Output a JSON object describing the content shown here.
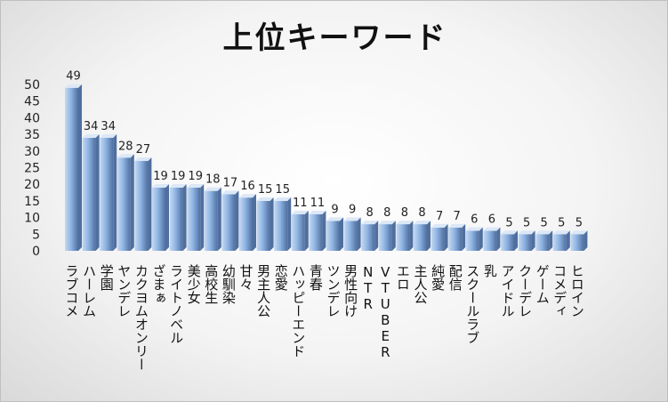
{
  "chart_data": {
    "type": "bar",
    "title": "上位キーワード",
    "xlabel": "",
    "ylabel": "",
    "ylim": [
      0,
      50
    ],
    "yticks": [
      0,
      5,
      10,
      15,
      20,
      25,
      30,
      35,
      40,
      45,
      50
    ],
    "grid": false,
    "legend": "none",
    "categories": [
      "ラブコメ",
      "ハーレム",
      "学園",
      "ヤンデレ",
      "カクヨムオンリー",
      "ざまぁ",
      "ライトノベル",
      "美少女",
      "高校生",
      "幼馴染",
      "甘々",
      "男主人公",
      "恋愛",
      "ハッピーエンド",
      "青春",
      "ツンデレ",
      "男性向け",
      "NTR",
      "VTUBER",
      "エロ",
      "主人公",
      "純愛",
      "配信",
      "スクールラブ",
      "乳",
      "アイドル",
      "クーデレ",
      "ゲーム",
      "コメディ",
      "ヒロイン"
    ],
    "values": [
      49,
      34,
      34,
      28,
      27,
      19,
      19,
      19,
      18,
      17,
      16,
      15,
      15,
      11,
      11,
      9,
      9,
      8,
      8,
      8,
      8,
      7,
      7,
      6,
      6,
      5,
      5,
      5,
      5,
      5
    ],
    "data_labels": [
      "49",
      "34",
      "34",
      "28",
      "27",
      "19",
      "19",
      "19",
      "18",
      "17",
      "16",
      "15",
      "15",
      "11",
      "11",
      "9",
      "9",
      "8",
      "8",
      "8",
      "8",
      "7",
      "7",
      "6",
      "6",
      "5",
      "5",
      "5",
      "5",
      "5"
    ],
    "colors": {
      "bar_light": "#c6d9f1",
      "bar_mid": "#8eb4e3",
      "bar_dark": "#4f6f9f",
      "bar_top": "#dce8f7"
    }
  }
}
